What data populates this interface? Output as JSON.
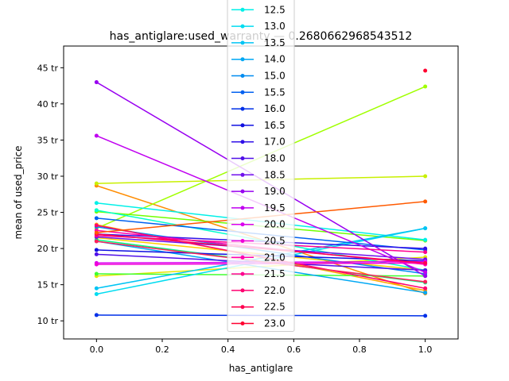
{
  "chart_data": {
    "type": "line",
    "title": "has_antiglare:used_warranty — 0.2680662968543512",
    "xlabel": "has_antiglare",
    "ylabel": "mean of used_price",
    "xlim": [
      -0.1,
      1.1
    ],
    "ylim": [
      7.5,
      48.0
    ],
    "xticks": [
      0.0,
      0.2,
      0.4,
      0.6,
      0.8,
      1.0
    ],
    "xtick_labels": [
      "0.0",
      "0.2",
      "0.4",
      "0.6",
      "0.8",
      "1.0"
    ],
    "yticks": [
      10,
      15,
      20,
      25,
      30,
      35,
      40,
      45
    ],
    "ytick_labels": [
      "10 tr",
      "15 tr",
      "20 tr",
      "25 tr",
      "30 tr",
      "35 tr",
      "40 tr",
      "45 tr"
    ],
    "grid": false,
    "legend_position": "upper-center",
    "series": [
      {
        "name": "",
        "color": "#ff6a00",
        "values": [
          null,
          null
        ]
      },
      {
        "name": "",
        "color": "#ff8c00",
        "values": [
          28.7,
          13.8
        ]
      },
      {
        "name": "",
        "color": "#ffaa00",
        "values": [
          23.3,
          14.2
        ]
      },
      {
        "name": "",
        "color": "#ffcc00",
        "values": [
          21.5,
          17.0
        ]
      },
      {
        "name": "",
        "color": "#e6e600",
        "values": [
          16.2,
          18.8
        ]
      },
      {
        "name": "",
        "color": "#c8f000",
        "values": [
          29.0,
          30.0
        ]
      },
      {
        "name": "",
        "color": "#a0ff00",
        "values": [
          22.8,
          42.4
        ]
      },
      {
        "name": "",
        "color": "#70ff00",
        "values": [
          25.1,
          21.1
        ]
      },
      {
        "name": "",
        "color": "#40ff30",
        "values": [
          16.5,
          16.2
        ]
      },
      {
        "name": "",
        "color": "#00ff80",
        "values": [
          21.2,
          15.3
        ]
      },
      {
        "name": "",
        "color": "#00ffcc",
        "values": [
          25.3,
          17.0
        ]
      },
      {
        "name": "12.5",
        "color": "#00f0e8",
        "values": [
          26.3,
          21.2
        ]
      },
      {
        "name": "13.0",
        "color": "#00dcf0",
        "values": [
          13.7,
          22.8
        ]
      },
      {
        "name": "13.5",
        "color": "#00c4f4",
        "values": [
          14.5,
          22.8
        ]
      },
      {
        "name": "14.0",
        "color": "#00a8f4",
        "values": [
          21.0,
          13.9
        ]
      },
      {
        "name": "15.0",
        "color": "#008cf0",
        "values": [
          23.0,
          16.5
        ]
      },
      {
        "name": "15.5",
        "color": "#0060f0",
        "values": [
          24.2,
          19.8
        ]
      },
      {
        "name": "16.0",
        "color": "#0030e8",
        "values": [
          10.8,
          10.7
        ]
      },
      {
        "name": "16.5",
        "color": "#1010e0",
        "values": [
          19.8,
          18.3
        ]
      },
      {
        "name": "17.0",
        "color": "#3010e8",
        "values": [
          22.0,
          20.0
        ]
      },
      {
        "name": "18.0",
        "color": "#5010e8",
        "values": [
          19.2,
          17.0
        ]
      },
      {
        "name": "18.5",
        "color": "#7010ec",
        "values": [
          21.6,
          18.5
        ]
      },
      {
        "name": "19.0",
        "color": "#9800f0",
        "values": [
          43.0,
          16.2
        ]
      },
      {
        "name": "19.5",
        "color": "#c000f0",
        "values": [
          35.6,
          16.7
        ]
      },
      {
        "name": "20.0",
        "color": "#dc00f0",
        "values": [
          18.0,
          18.2
        ]
      },
      {
        "name": "20.5",
        "color": "#f000d8",
        "values": [
          17.8,
          18.0
        ]
      },
      {
        "name": "21.0",
        "color": "#ff00b0",
        "values": [
          22.5,
          17.8
        ]
      },
      {
        "name": "21.5",
        "color": "#ff0090",
        "values": [
          21.8,
          19.5
        ]
      },
      {
        "name": "22.0",
        "color": "#ff0070",
        "values": [
          23.2,
          14.5
        ]
      },
      {
        "name": "22.5",
        "color": "#ff0050",
        "values": [
          22.0,
          18.0
        ]
      },
      {
        "name": "23.0",
        "color": "#ff0030",
        "values": [
          null,
          44.6
        ]
      },
      {
        "name": "",
        "color": "#ff5a00",
        "values": [
          22.2,
          26.5
        ]
      },
      {
        "name": "",
        "color": "#ff1f5a",
        "values": [
          21.0,
          15.4
        ]
      }
    ]
  }
}
